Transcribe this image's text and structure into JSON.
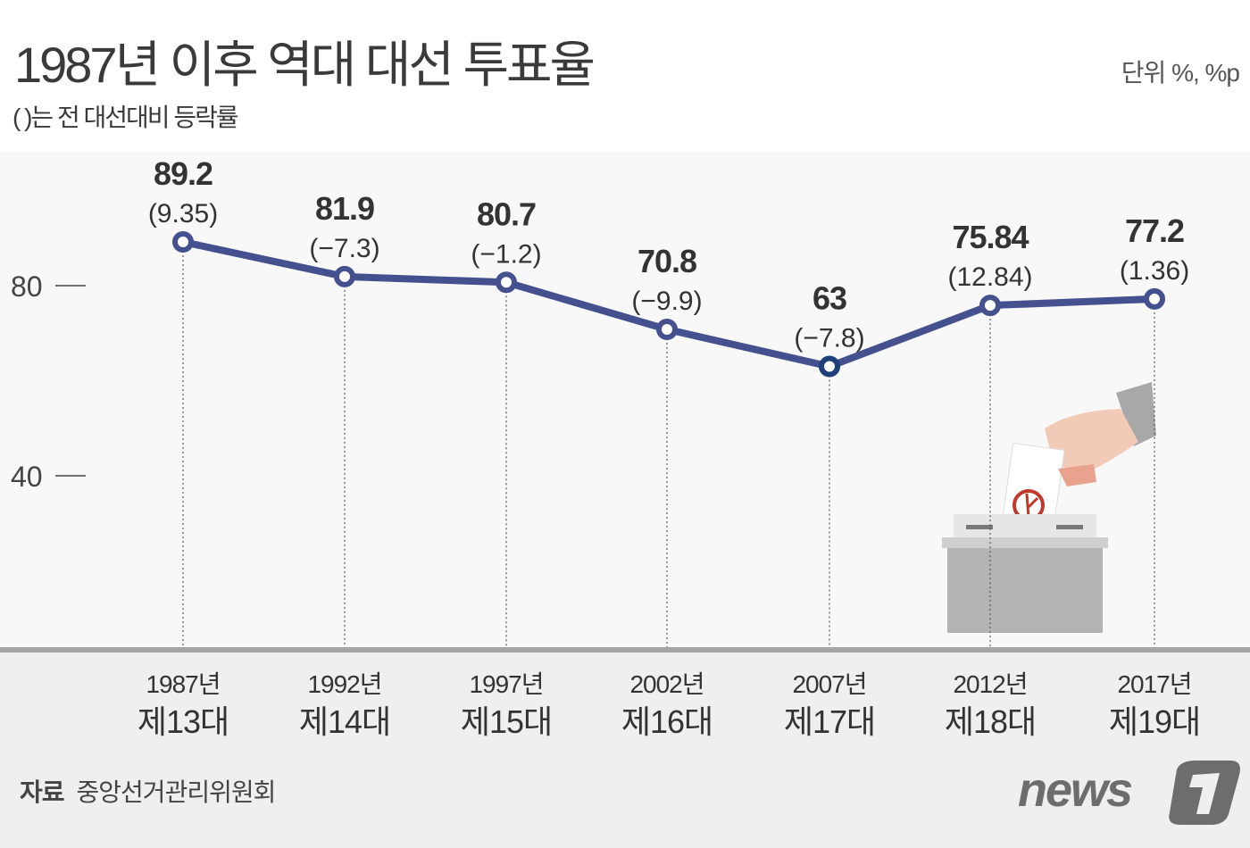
{
  "title": "1987년 이후 역대 대선 투표율",
  "subtitle": "( )는 전 대선대비 등락률",
  "unit": "단위 %, %p",
  "source_label": "자료",
  "source": "중앙선거관리위원회",
  "logo": "news1",
  "colors": {
    "line": "#45508f",
    "marker_fill": "#ffffff",
    "marker_highlight": "#1f3f7a",
    "axis_band": "#efefef",
    "baseline": "#a5a5a5"
  },
  "chart_data": {
    "type": "line",
    "categories": [
      "1987년",
      "1992년",
      "1997년",
      "2002년",
      "2007년",
      "2012년",
      "2017년"
    ],
    "sublabels": [
      "제13대",
      "제14대",
      "제15대",
      "제16대",
      "제17대",
      "제18대",
      "제19대"
    ],
    "values": [
      89.2,
      81.9,
      80.7,
      70.8,
      63,
      75.84,
      77.2
    ],
    "value_labels": [
      "89.2",
      "81.9",
      "80.7",
      "70.8",
      "63",
      "75.84",
      "77.2"
    ],
    "change_labels": [
      "(9.35)",
      "(−7.3)",
      "(−1.2)",
      "(−9.9)",
      "(−7.8)",
      "(12.84)",
      "(1.36)"
    ],
    "yticks": [
      40,
      80
    ],
    "ytick_labels": [
      "40",
      "80"
    ],
    "ylim": [
      0,
      100
    ],
    "grid": false
  }
}
